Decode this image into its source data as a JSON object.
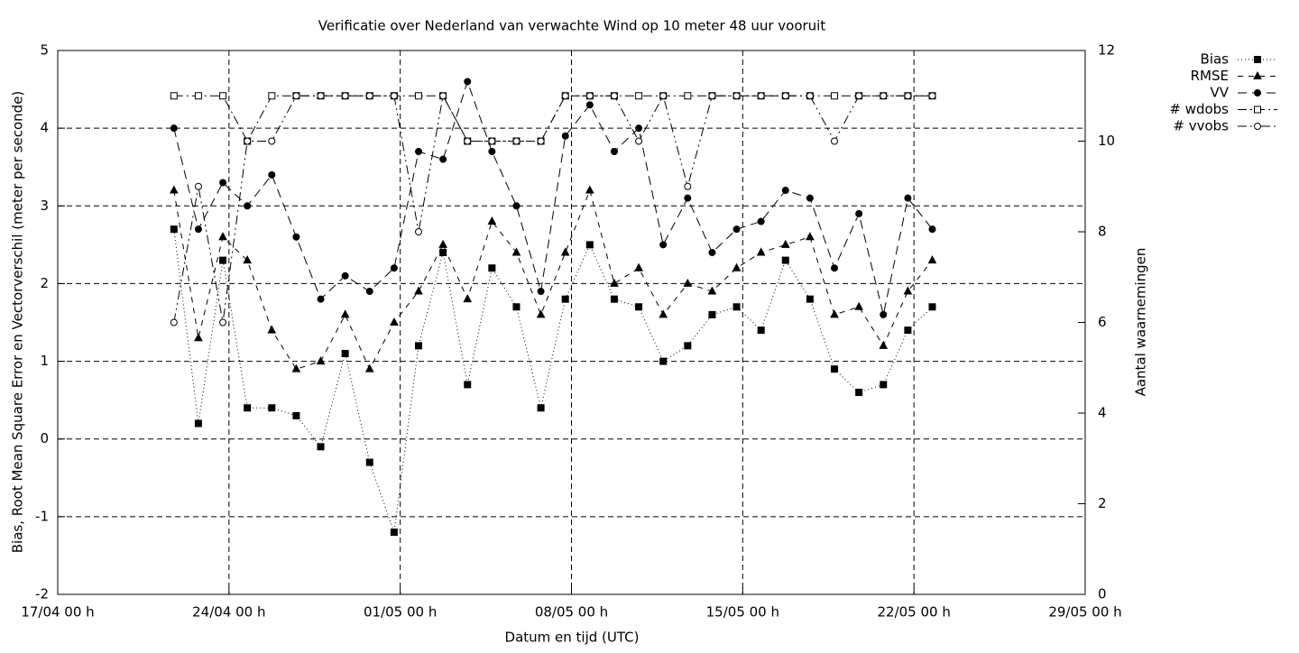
{
  "chart_data": {
    "type": "line",
    "title": "Verificatie over Nederland van verwachte Wind op 10 meter 48 uur vooruit",
    "x_label": "Datum en tijd (UTC)",
    "y_label": "Bias, Root Mean Square Error en Vectorverschil (meter per seconde)",
    "y2_label": "Aantal waarnemingen",
    "x": [
      "21/04 18 h",
      "22/04 18 h",
      "23/04 18 h",
      "24/04 18 h",
      "25/04 18 h",
      "26/04 18 h",
      "27/04 18 h",
      "28/04 18 h",
      "29/04 18 h",
      "30/04 18 h",
      "01/05 18 h",
      "02/05 18 h",
      "03/05 18 h",
      "04/05 18 h",
      "05/05 18 h",
      "06/05 18 h",
      "07/05 18 h",
      "08/05 18 h",
      "09/05 18 h",
      "10/05 18 h",
      "11/05 18 h",
      "12/05 18 h",
      "13/05 18 h",
      "14/05 18 h",
      "15/05 18 h",
      "16/05 18 h",
      "17/05 18 h",
      "18/05 18 h",
      "19/05 18 h",
      "20/05 18 h",
      "21/05 18 h",
      "22/05 18 h"
    ],
    "xlim": [
      "17/04 00 h",
      "29/05 00 h"
    ],
    "xticks": [
      "17/04 00 h",
      "24/04 00 h",
      "01/05 00 h",
      "08/05 00 h",
      "15/05 00 h",
      "22/05 00 h",
      "29/05 00 h"
    ],
    "ylim": [
      -2,
      5
    ],
    "yticks": [
      -2,
      -1,
      0,
      1,
      2,
      3,
      4,
      5
    ],
    "y2lim": [
      0,
      12
    ],
    "y2ticks": [
      0,
      2,
      4,
      6,
      8,
      10,
      12
    ],
    "grid": true,
    "legend": "right",
    "series": [
      {
        "name": "Bias",
        "color": "#000000",
        "marker": "square",
        "dash": "dotted",
        "values": [
          2.7,
          0.2,
          2.3,
          0.4,
          0.4,
          0.3,
          -0.1,
          1.1,
          -0.3,
          -1.2,
          1.2,
          2.4,
          0.7,
          2.2,
          1.7,
          0.4,
          1.8,
          2.5,
          1.8,
          1.7,
          1.0,
          1.2,
          1.6,
          1.7,
          1.4,
          2.3,
          1.8,
          0.9,
          0.6,
          0.7,
          1.4,
          1.7
        ]
      },
      {
        "name": "RMSE",
        "color": "#000000",
        "marker": "triangle",
        "dash": "dashed",
        "values": [
          3.2,
          1.3,
          2.6,
          2.3,
          1.4,
          0.9,
          1.0,
          1.6,
          0.9,
          1.5,
          1.9,
          2.5,
          1.8,
          2.8,
          2.4,
          1.6,
          2.4,
          3.2,
          2.0,
          2.2,
          1.6,
          2.0,
          1.9,
          2.2,
          2.4,
          2.5,
          2.6,
          1.6,
          1.7,
          1.2,
          1.9,
          2.3
        ]
      },
      {
        "name": "VV",
        "color": "#000000",
        "marker": "circle",
        "dash": "longdash",
        "values": [
          4.0,
          2.7,
          3.3,
          3.0,
          3.4,
          2.6,
          1.8,
          2.1,
          1.9,
          2.2,
          3.7,
          3.6,
          4.6,
          3.7,
          3.0,
          1.9,
          3.9,
          4.3,
          3.7,
          4.0,
          2.5,
          3.1,
          2.4,
          2.7,
          2.8,
          3.2,
          3.1,
          2.2,
          2.9,
          1.6,
          3.1,
          2.7
        ]
      },
      {
        "name": "# wdobs",
        "color": "#000000",
        "marker": "open-square",
        "dash": "dashdot",
        "axis": "y2",
        "values": [
          11,
          11,
          11,
          10,
          11,
          11,
          11,
          11,
          11,
          11,
          11,
          11,
          10,
          10,
          10,
          10,
          11,
          11,
          11,
          11,
          11,
          11,
          11,
          11,
          11,
          11,
          11,
          11,
          11,
          11,
          11,
          11
        ]
      },
      {
        "name": "# vvobs",
        "color": "#000000",
        "marker": "open-circle",
        "dash": "dashdotdot",
        "axis": "y2",
        "values": [
          6,
          9,
          6,
          10,
          10,
          11,
          11,
          11,
          11,
          11,
          8,
          11,
          10,
          10,
          10,
          10,
          11,
          11,
          11,
          10,
          11,
          9,
          11,
          11,
          11,
          11,
          11,
          10,
          11,
          11,
          11,
          11
        ]
      }
    ]
  }
}
